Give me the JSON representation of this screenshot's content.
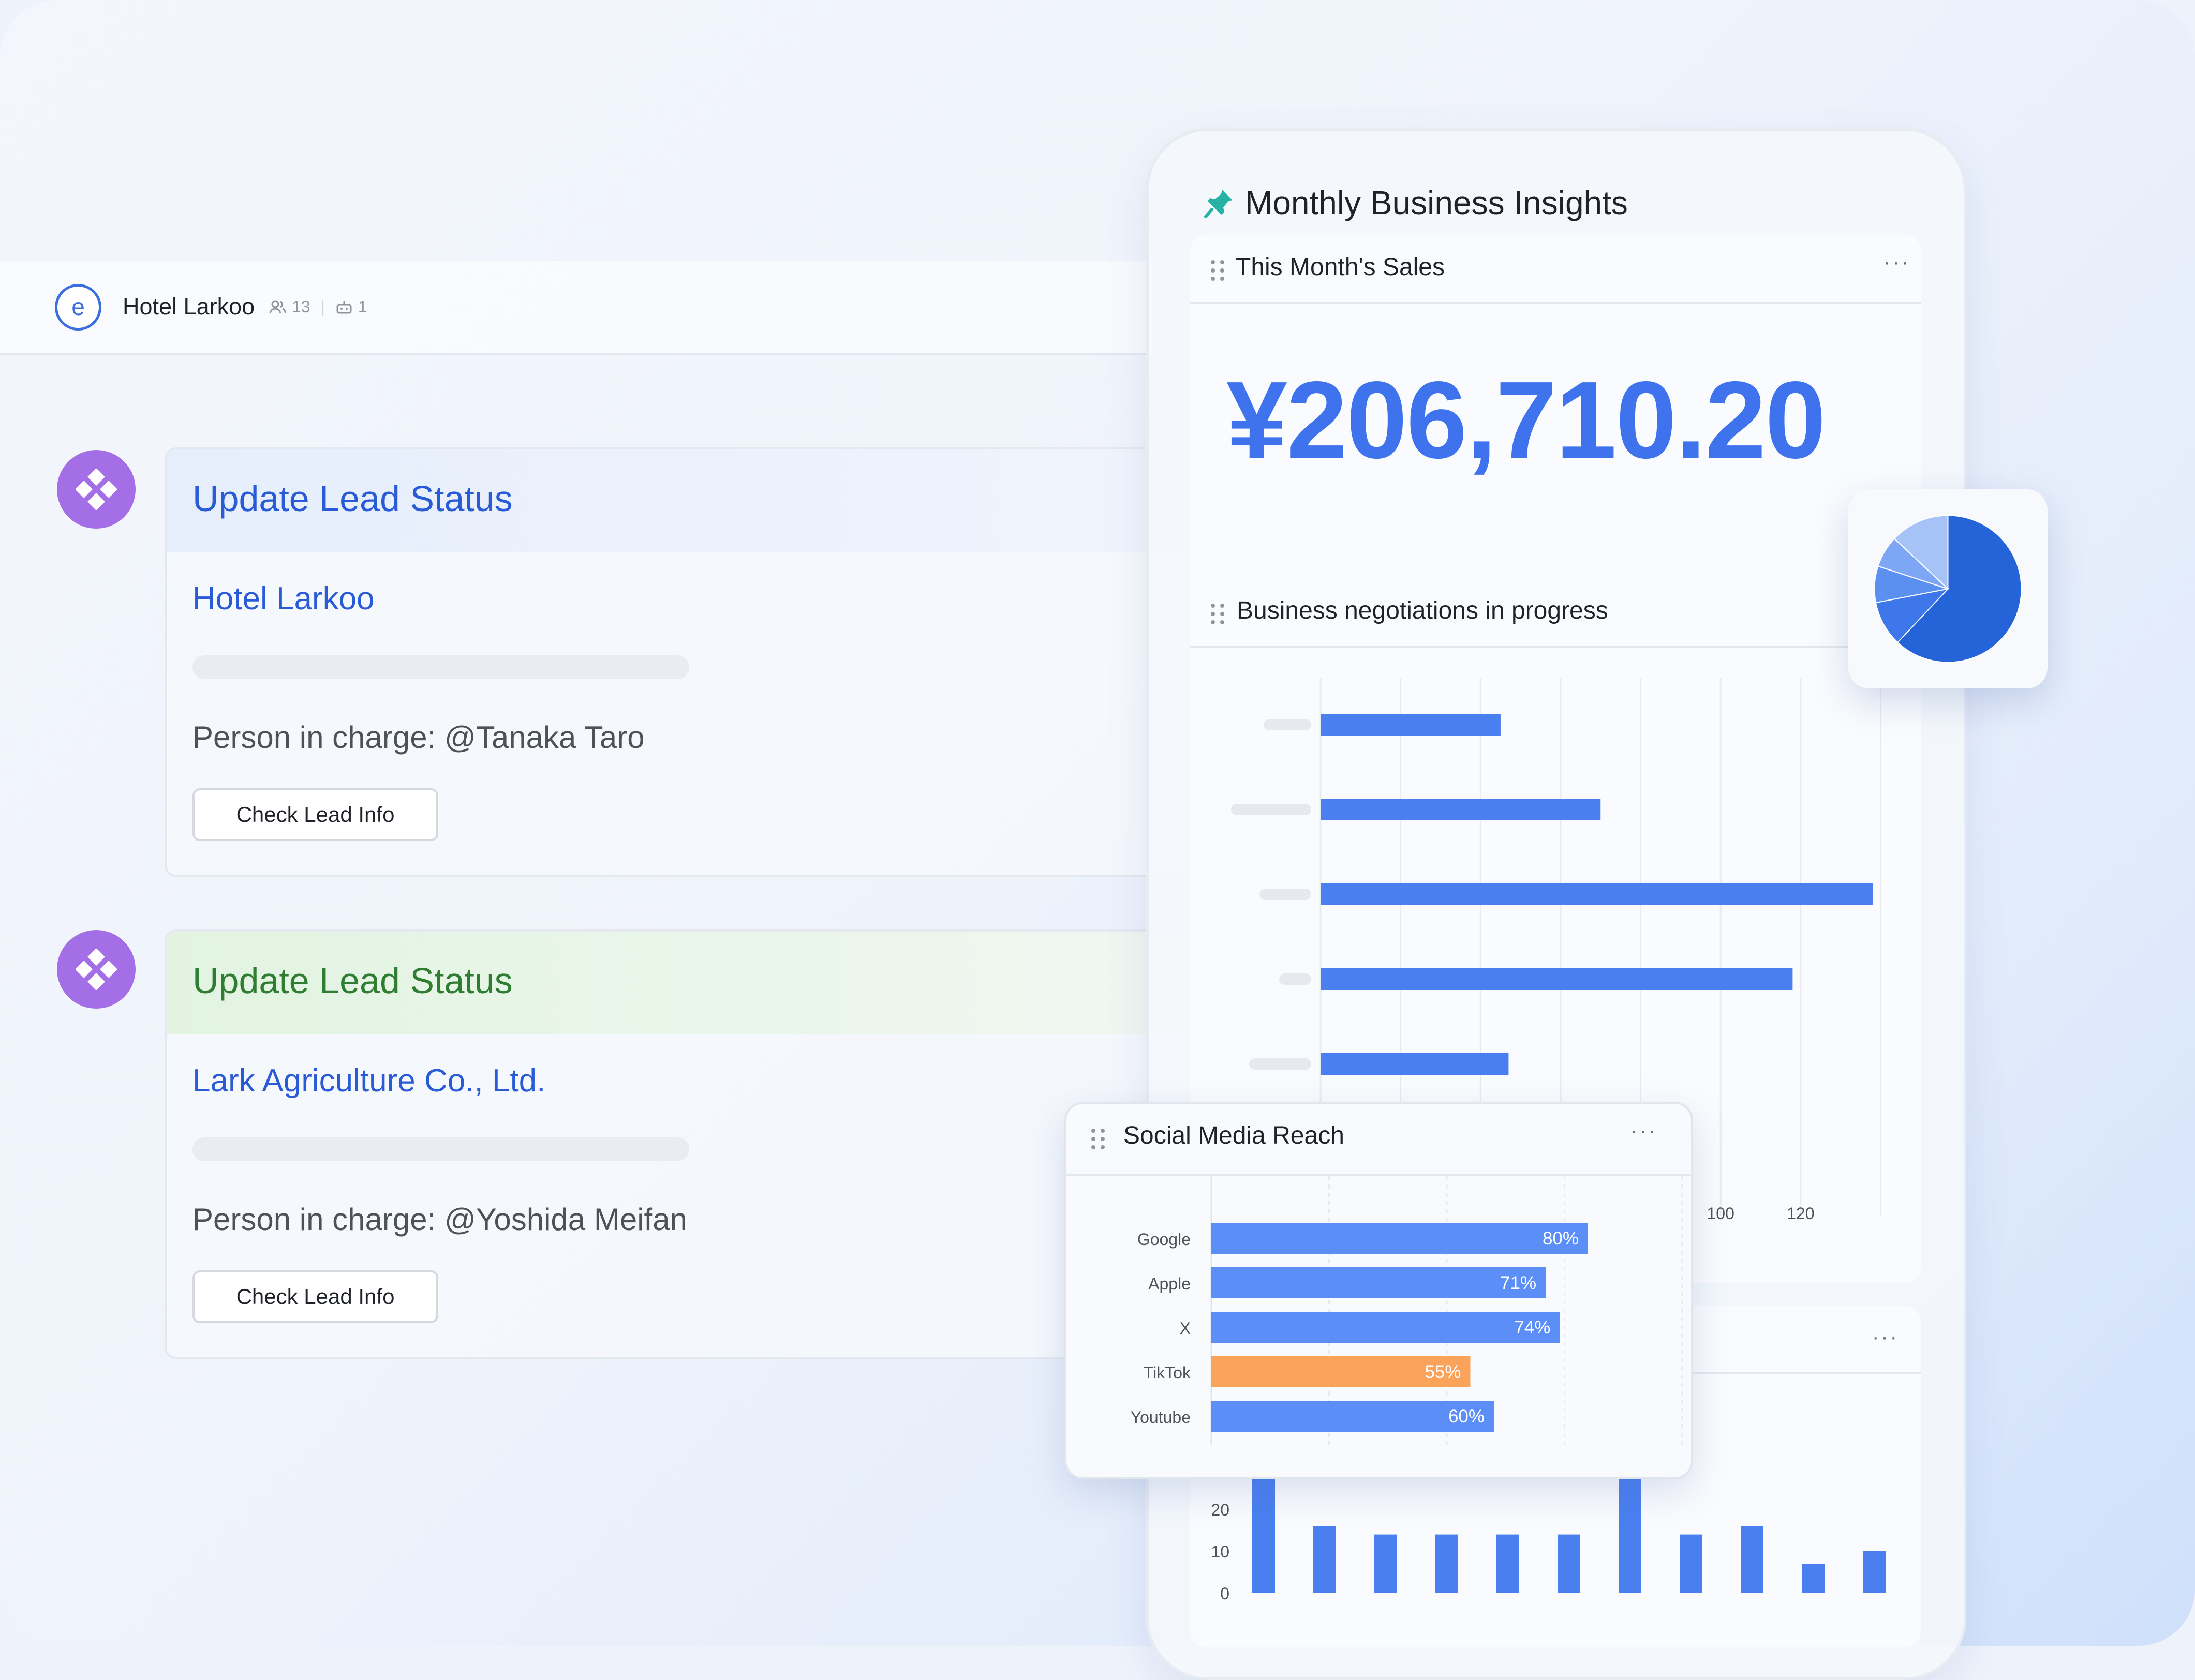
{
  "chat": {
    "avatar_letter": "e",
    "title": "Hotel Larkoo",
    "members_count": "13",
    "bots_count": "1"
  },
  "messages": [
    {
      "title": "Update Lead Status",
      "company": "Hotel Larkoo",
      "person": "Person in charge: @Tanaka Taro",
      "button": "Check Lead Info",
      "accent": "#2a5bd7"
    },
    {
      "title": "Update Lead Status",
      "company": "Lark Agriculture Co., Ltd.",
      "person": "Person in charge: @Yoshida Meifan",
      "button": "Check Lead Info",
      "accent": "#2e7d32"
    }
  ],
  "dashboard": {
    "title": "Monthly Business Insights",
    "sales_widget": {
      "title": "This Month's Sales",
      "value": "¥206,710.20"
    },
    "negotiations_widget": {
      "title": "Business negotiations in progress"
    },
    "social_widget": {
      "title": "Social Media Reach"
    }
  },
  "chart_data": [
    {
      "type": "pie",
      "values": [
        62,
        10,
        8,
        7,
        13
      ],
      "colors": [
        "#2563d9",
        "#3e77ea",
        "#5b8ff0",
        "#7da6f4",
        "#a6c3f8"
      ]
    },
    {
      "type": "bar",
      "orientation": "horizontal",
      "values": [
        45,
        70,
        138,
        118,
        47
      ],
      "x_ticks": [
        "100",
        "120"
      ],
      "color": "#4a7ff0"
    },
    {
      "type": "bar",
      "orientation": "horizontal",
      "categories": [
        "Google",
        "Apple",
        "X",
        "TikTok",
        "Youtube"
      ],
      "values": [
        80,
        71,
        74,
        55,
        60
      ],
      "labels": [
        "80%",
        "71%",
        "74%",
        "55%",
        "60%"
      ],
      "colors": [
        "#5b8ef7",
        "#5b8ef7",
        "#5b8ef7",
        "#fba35a",
        "#5b8ef7"
      ]
    },
    {
      "type": "bar",
      "y_ticks": [
        "0",
        "10",
        "20"
      ],
      "values": [
        28,
        16,
        14,
        14,
        14,
        14,
        28,
        14,
        16,
        7,
        10
      ],
      "color": "#4a7ff0"
    }
  ]
}
